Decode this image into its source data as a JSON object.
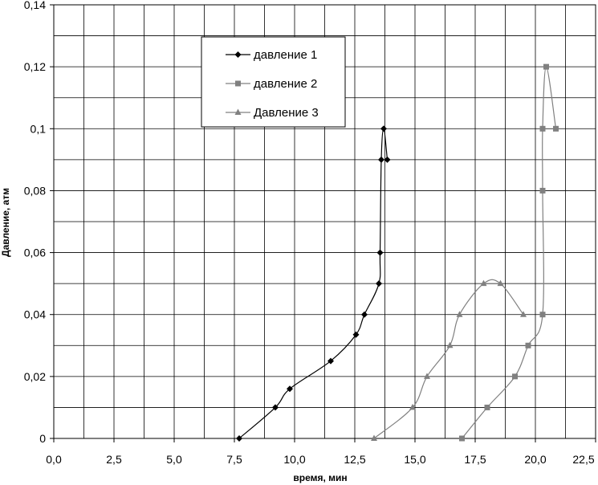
{
  "chart_data": {
    "type": "line",
    "title": "",
    "xlabel": "время, мин",
    "ylabel": "Давление, атм",
    "xlim": [
      0,
      22.5
    ],
    "ylim": [
      0,
      0.14
    ],
    "x_ticks": [
      "0,0",
      "2,5",
      "5,0",
      "7,5",
      "10,0",
      "12,5",
      "15,0",
      "17,5",
      "20,0",
      "22,5"
    ],
    "y_ticks": [
      "0",
      "0,02",
      "0,04",
      "0,06",
      "0,08",
      "0,1",
      "0,12",
      "0,14"
    ],
    "grid": true,
    "legend_position": "top-center",
    "series": [
      {
        "name": "давление 1",
        "marker": "diamond",
        "color": "#000000",
        "points": [
          [
            7.7,
            0
          ],
          [
            9.2,
            0.01
          ],
          [
            9.8,
            0.016
          ],
          [
            11.5,
            0.025
          ],
          [
            12.55,
            0.0335
          ],
          [
            12.9,
            0.04
          ],
          [
            13.5,
            0.05
          ],
          [
            13.55,
            0.06
          ],
          [
            13.6,
            0.09
          ],
          [
            13.7,
            0.1
          ],
          [
            13.85,
            0.09
          ]
        ]
      },
      {
        "name": "давление 2",
        "marker": "square",
        "color": "#808080",
        "points": [
          [
            16.95,
            0
          ],
          [
            18.0,
            0.01
          ],
          [
            19.15,
            0.02
          ],
          [
            19.7,
            0.03
          ],
          [
            20.3,
            0.04
          ],
          [
            20.3,
            0.08
          ],
          [
            20.3,
            0.1
          ],
          [
            20.45,
            0.12
          ],
          [
            20.85,
            0.1
          ]
        ]
      },
      {
        "name": "Давление 3",
        "marker": "triangle",
        "color": "#808080",
        "points": [
          [
            13.3,
            0
          ],
          [
            14.9,
            0.01
          ],
          [
            15.5,
            0.02
          ],
          [
            16.45,
            0.03
          ],
          [
            16.85,
            0.04
          ],
          [
            17.85,
            0.05
          ],
          [
            18.55,
            0.05
          ],
          [
            19.5,
            0.04
          ]
        ]
      }
    ]
  }
}
